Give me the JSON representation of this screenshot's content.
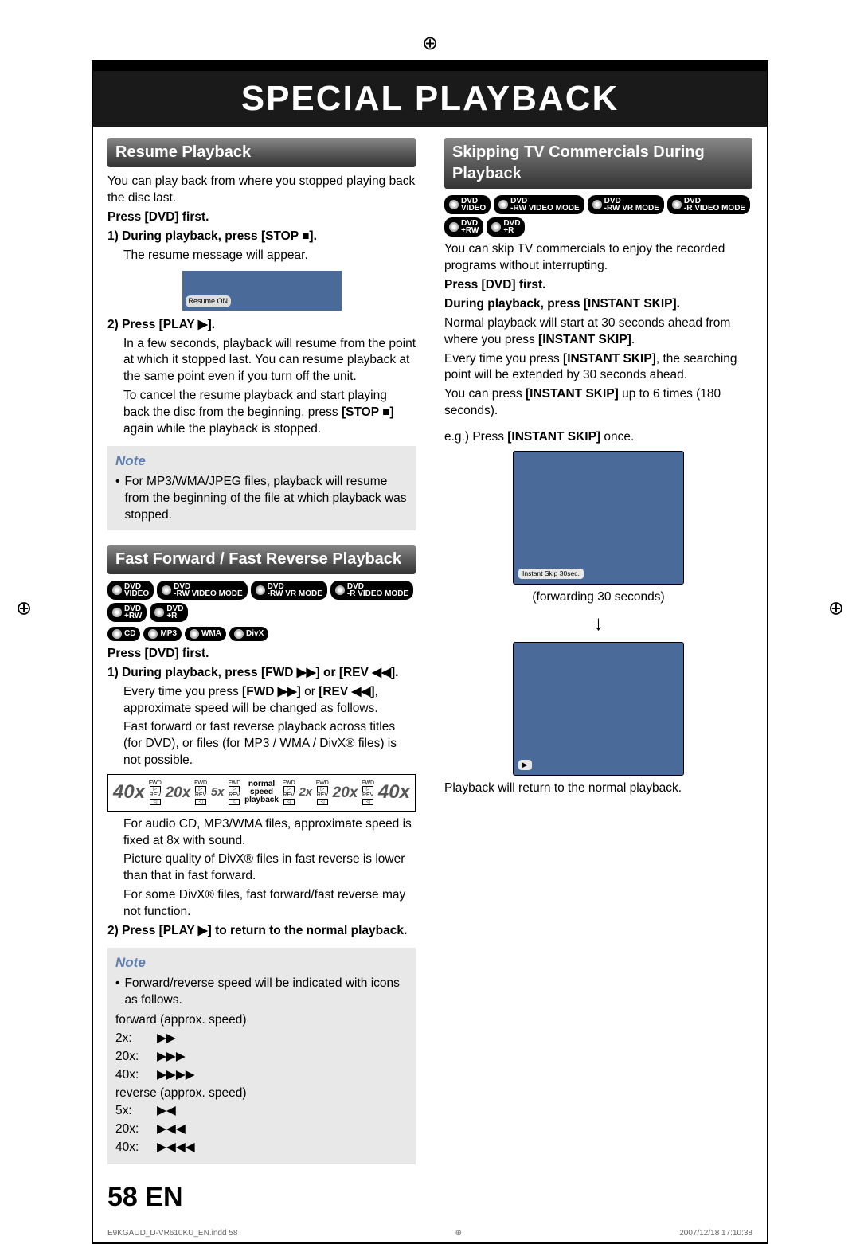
{
  "title": "SPECIAL PLAYBACK",
  "pageNum": "58",
  "lang": "EN",
  "footer": {
    "file": "E9KGAUD_D-VR610KU_EN.indd   58",
    "date": "2007/12/18   17:10:38"
  },
  "resume": {
    "head": "Resume Playback",
    "intro": "You can play back from where you stopped playing back the disc last.",
    "pressFirst": "Press [DVD] first.",
    "step1b": "1) During playback, press [STOP ■].",
    "step1t": "The resume message will appear.",
    "resumeOn": "Resume ON",
    "step2b": "2) Press [PLAY ▶].",
    "step2t1": "In a few seconds, playback will resume from the point at which it stopped last. You can resume playback at the same point even if you turn off the unit.",
    "step2t2a": "To cancel the resume playback and start playing back the disc from the beginning, press ",
    "step2t2b": "[STOP ■]",
    "step2t2c": " again while the playback is stopped.",
    "noteTitle": "Note",
    "note1": "For MP3/WMA/JPEG files, playback will resume from the beginning of the file at which playback was stopped."
  },
  "ff": {
    "head": "Fast Forward / Fast Reverse Playback",
    "discs1": [
      "DVD VIDEO",
      "DVD -RW VIDEO MODE",
      "DVD -RW VR MODE",
      "DVD -R VIDEO MODE",
      "DVD +RW",
      "DVD +R"
    ],
    "discs2": [
      "CD",
      "MP3",
      "WMA",
      "DivX"
    ],
    "pressFirst": "Press [DVD] first.",
    "step1b": "1) During playback, press [FWD ▶▶] or [REV ◀◀].",
    "step1t1a": "Every time you press ",
    "step1t1b": "[FWD ▶▶]",
    "step1t1c": " or ",
    "step1t1d": "[REV ◀◀]",
    "step1t1e": ", approximate speed will be changed as follows.",
    "step1t2": "Fast forward or fast reverse playback across titles (for DVD), or files (for MP3 / WMA / DivX® files) is not possible.",
    "speeds": {
      "s40": "40x",
      "s20": "20x",
      "s5": "5x",
      "s2": "2x",
      "norm1": "normal",
      "norm2": "speed",
      "norm3": "playback"
    },
    "after1": "For audio CD, MP3/WMA files, approximate speed is fixed at 8x with sound.",
    "after2": "Picture quality of DivX® files in fast reverse is lower than that in fast forward.",
    "after3": "For some DivX® files, fast forward/fast reverse may not function.",
    "step2b": "2) Press [PLAY ▶] to return to the normal playback.",
    "noteTitle": "Note",
    "note1": "Forward/reverse speed will be indicated with icons as follows.",
    "fwdLbl": "forward (approx. speed)",
    "revLbl": "reverse (approx. speed)",
    "spd": [
      {
        "l": "2x:",
        "i": "▶▶"
      },
      {
        "l": "20x:",
        "i": "▶▶▶"
      },
      {
        "l": "40x:",
        "i": "▶▶▶▶"
      }
    ],
    "spdR": [
      {
        "l": "5x:",
        "i": "▶◀"
      },
      {
        "l": "20x:",
        "i": "▶◀◀"
      },
      {
        "l": "40x:",
        "i": "▶◀◀◀"
      }
    ]
  },
  "skip": {
    "head": "Skipping TV Commercials During Playback",
    "discs": [
      "DVD VIDEO",
      "DVD -RW VIDEO MODE",
      "DVD -RW VR MODE",
      "DVD -R VIDEO MODE",
      "DVD +RW",
      "DVD +R"
    ],
    "intro": "You can skip TV commercials to enjoy the recorded programs without interrupting.",
    "pressFirst": "Press [DVD] first.",
    "step1b": "During playback, press [INSTANT SKIP].",
    "t1a": "Normal playback will start at 30 seconds ahead from where you press ",
    "t1b": "[INSTANT SKIP]",
    "t1c": ".",
    "t2a": "Every time you press ",
    "t2b": "[INSTANT SKIP]",
    "t2c": ", the searching point will be extended by 30 seconds ahead.",
    "t3a": "You can press ",
    "t3b": "[INSTANT SKIP]",
    "t3c": " up to 6 times (180 seconds).",
    "eg": "e.g.) Press ",
    "egB": "[INSTANT SKIP]",
    "egC": " once.",
    "pill1": "Instant Skip 30sec.",
    "fwd": "(forwarding 30 seconds)",
    "pill2": "▶",
    "end": "Playback will return to the normal playback."
  }
}
